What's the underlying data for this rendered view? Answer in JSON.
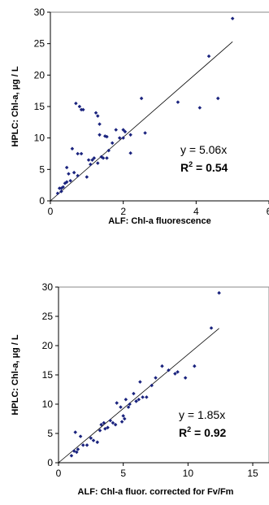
{
  "chart_data": [
    {
      "type": "scatter",
      "xlabel": "ALF: Chl-a fluorescence",
      "ylabel": "HPLC: Chl-a, µg / L",
      "xlim": [
        0,
        6
      ],
      "ylim": [
        0,
        30
      ],
      "xticks": [
        "0",
        "2",
        "4",
        "6"
      ],
      "yticks": [
        "0",
        "5",
        "10",
        "15",
        "20",
        "25",
        "30"
      ],
      "equation": "y = 5.06x",
      "r2_label": "R",
      "r2_sup": "2",
      "r2_value": " = 0.54",
      "fit_slope": 5.06,
      "fit_x_range": [
        0,
        5.0
      ],
      "series": [
        {
          "x": [
            0.2,
            0.25,
            0.3,
            0.35,
            0.4,
            0.45,
            0.5,
            0.55,
            0.6,
            0.65,
            0.7,
            0.75,
            0.8,
            0.85,
            0.9,
            1.0,
            1.05,
            1.1,
            1.15,
            1.2,
            1.25,
            1.3,
            1.35,
            1.4,
            1.45,
            1.5,
            1.55,
            1.6,
            1.7,
            1.8,
            1.9,
            2.0,
            2.05,
            2.2,
            2.5,
            2.6,
            3.5,
            4.1,
            4.35,
            4.6,
            5.0,
            0.3,
            0.45,
            0.75,
            0.85,
            1.3,
            1.35,
            1.55,
            2.0,
            2.2
          ],
          "y": [
            1.2,
            2.0,
            1.5,
            2.2,
            2.8,
            5.3,
            4.3,
            3.2,
            8.3,
            4.5,
            15.5,
            7.5,
            15.0,
            14.5,
            14.5,
            3.8,
            6.5,
            5.8,
            6.5,
            6.8,
            14.0,
            13.5,
            10.5,
            7.0,
            6.8,
            10.3,
            6.8,
            8.0,
            9.2,
            11.3,
            10.0,
            11.3,
            11.0,
            10.5,
            16.3,
            10.8,
            15.7,
            14.8,
            23.0,
            16.3,
            29.0,
            2.0,
            3.0,
            4.0,
            7.5,
            6.0,
            12.2,
            10.2,
            10.0,
            7.6
          ]
        }
      ]
    },
    {
      "type": "scatter",
      "xlabel": "ALF: Chl-a fluor. corrected for Fv/Fm",
      "ylabel": "HPLC: Chl-a, µg / L",
      "xlim": [
        0,
        15
      ],
      "ylim": [
        0,
        30
      ],
      "xticks": [
        "0",
        "5",
        "10",
        "15"
      ],
      "yticks": [
        "0",
        "5",
        "10",
        "15",
        "20",
        "25",
        "30"
      ],
      "equation": "y = 1.85x",
      "r2_label": "R",
      "r2_sup": "2",
      "r2_value": " = 0.92",
      "fit_slope": 1.85,
      "fit_x_range": [
        0,
        12.4
      ],
      "series": [
        {
          "x": [
            1.0,
            1.2,
            1.3,
            1.5,
            1.7,
            1.9,
            2.2,
            2.5,
            3.0,
            3.2,
            3.3,
            3.5,
            3.8,
            4.0,
            4.2,
            4.5,
            4.8,
            5.0,
            5.2,
            5.4,
            5.5,
            5.8,
            6.0,
            6.2,
            6.5,
            6.8,
            7.5,
            8.0,
            8.5,
            9.0,
            9.8,
            10.5,
            11.8,
            12.4,
            1.4,
            2.7,
            3.6,
            4.4,
            5.1,
            6.3,
            7.2,
            4.9,
            6.0,
            9.2
          ],
          "y": [
            1.2,
            2.0,
            5.2,
            2.3,
            4.5,
            3.0,
            3.0,
            4.2,
            3.5,
            5.5,
            6.5,
            6.8,
            6.0,
            7.2,
            6.8,
            10.2,
            9.5,
            8.0,
            10.8,
            9.5,
            10.0,
            11.8,
            10.5,
            10.8,
            11.2,
            11.2,
            14.5,
            16.5,
            15.8,
            15.2,
            14.5,
            16.5,
            23.0,
            29.0,
            1.8,
            3.8,
            5.8,
            6.5,
            7.5,
            13.8,
            13.2,
            7.0,
            10.5,
            15.5
          ]
        }
      ]
    }
  ]
}
